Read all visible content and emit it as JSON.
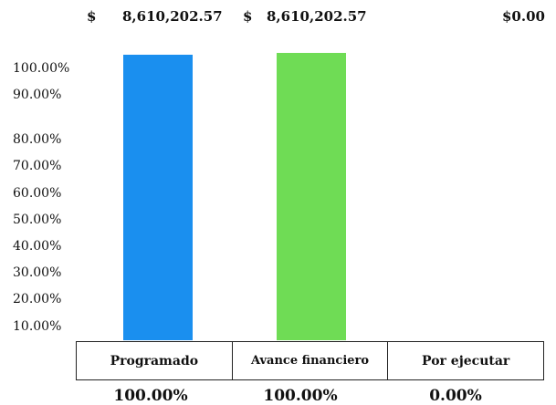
{
  "amounts": {
    "programado_symbol": "$",
    "programado_value": "8,610,202.57",
    "avance_symbol": "$",
    "avance_value": "8,610,202.57",
    "por_ejecutar": "$0.00"
  },
  "chart_data": {
    "type": "bar",
    "categories": [
      "Programado",
      "Avance financiero",
      "Por ejecutar"
    ],
    "values": [
      100,
      100,
      0
    ],
    "value_labels": [
      "100.00%",
      "100.00%",
      "0.00%"
    ],
    "colors": [
      "#1a8fef",
      "#6fdc55",
      "#ffffff"
    ],
    "ylim": [
      0,
      100
    ],
    "yticks": [
      "100.00%",
      "90.00%",
      "80.00%",
      "70.00%",
      "60.00%",
      "50.00%",
      "40.00%",
      "30.00%",
      "20.00%",
      "10.00%"
    ],
    "grid": false,
    "title": "",
    "xlabel": "",
    "ylabel": ""
  }
}
